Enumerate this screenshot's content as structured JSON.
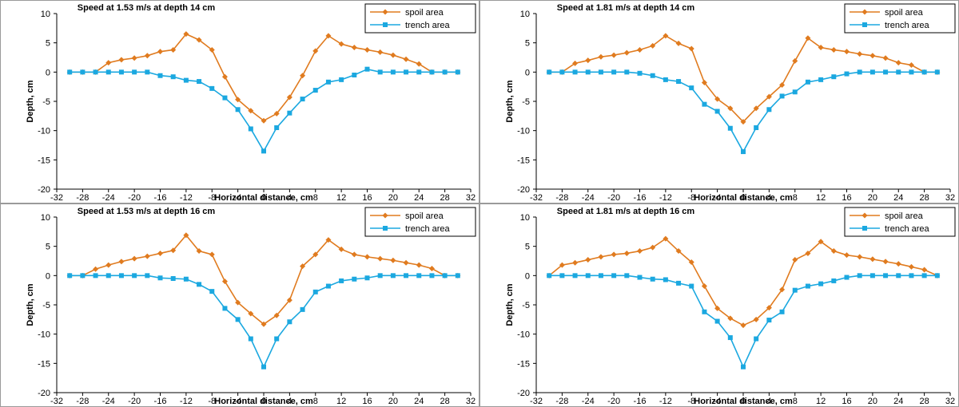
{
  "chart_data": [
    {
      "type": "line",
      "title": "Speed at 1.53 m/s at depth 14 cm",
      "xlabel": "Horizontal distance, cm",
      "ylabel": "Depth, cm",
      "xlim": [
        -32,
        32
      ],
      "ylim": [
        -20,
        10
      ],
      "xticks": [
        "-32",
        "-28",
        "-24",
        "-20",
        "-16",
        "-12",
        "-8",
        "-4",
        "0",
        "4",
        "8",
        "12",
        "16",
        "20",
        "24",
        "28",
        "32"
      ],
      "yticks": [
        "10",
        "5",
        "0",
        "-5",
        "-10",
        "-15",
        "-20"
      ],
      "legend": "top-right",
      "x": [
        -30,
        -28,
        -26,
        -24,
        -22,
        -20,
        -18,
        -16,
        -14,
        -12,
        -10,
        -8,
        -6,
        -4,
        -2,
        0,
        2,
        4,
        6,
        8,
        10,
        12,
        14,
        16,
        18,
        20,
        22,
        24,
        26,
        28,
        30
      ],
      "series": [
        {
          "name": "spoil area",
          "color": "#e07b1f",
          "marker": "diamond",
          "values": [
            0,
            0,
            0,
            1.6,
            2.1,
            2.4,
            2.8,
            3.5,
            3.8,
            6.5,
            5.5,
            3.8,
            -0.8,
            -4.7,
            -6.6,
            -8.3,
            -7.1,
            -4.3,
            -0.6,
            3.6,
            6.2,
            4.8,
            4.2,
            3.8,
            3.4,
            2.9,
            2.2,
            1.4,
            0,
            0,
            0
          ]
        },
        {
          "name": "trench area",
          "color": "#1ba8e0",
          "marker": "square",
          "values": [
            0,
            0,
            0,
            0,
            0,
            0,
            0,
            -0.6,
            -0.8,
            -1.4,
            -1.6,
            -2.8,
            -4.4,
            -6.4,
            -9.7,
            -13.5,
            -9.5,
            -7.0,
            -4.6,
            -3.1,
            -1.7,
            -1.3,
            -0.5,
            0.5,
            0,
            0,
            0,
            0,
            0,
            0,
            0
          ]
        }
      ]
    },
    {
      "type": "line",
      "title": "Speed at 1.81 m/s at depth 14 cm",
      "xlabel": "Horizontal distance, cm",
      "ylabel": "Depth, cm",
      "xlim": [
        -32,
        32
      ],
      "ylim": [
        -20,
        10
      ],
      "xticks": [
        "-32",
        "-28",
        "-24",
        "-20",
        "-16",
        "-12",
        "-8",
        "-4",
        "0",
        "4",
        "8",
        "12",
        "16",
        "20",
        "24",
        "28",
        "32"
      ],
      "yticks": [
        "10",
        "5",
        "0",
        "-5",
        "-10",
        "-15",
        "-20"
      ],
      "legend": "top-right",
      "x": [
        -30,
        -28,
        -26,
        -24,
        -22,
        -20,
        -18,
        -16,
        -14,
        -12,
        -10,
        -8,
        -6,
        -4,
        -2,
        0,
        2,
        4,
        6,
        8,
        10,
        12,
        14,
        16,
        18,
        20,
        22,
        24,
        26,
        28,
        30
      ],
      "series": [
        {
          "name": "spoil area",
          "color": "#e07b1f",
          "marker": "diamond",
          "values": [
            0,
            0,
            1.5,
            2.0,
            2.6,
            2.9,
            3.3,
            3.8,
            4.5,
            6.2,
            4.9,
            4.0,
            -1.8,
            -4.6,
            -6.2,
            -8.5,
            -6.2,
            -4.2,
            -2.2,
            1.9,
            5.8,
            4.2,
            3.8,
            3.5,
            3.1,
            2.8,
            2.4,
            1.6,
            1.2,
            0,
            0
          ]
        },
        {
          "name": "trench area",
          "color": "#1ba8e0",
          "marker": "square",
          "values": [
            0,
            0,
            0,
            0,
            0,
            0,
            0,
            -0.2,
            -0.6,
            -1.3,
            -1.6,
            -2.7,
            -5.5,
            -6.7,
            -9.6,
            -13.6,
            -9.5,
            -6.4,
            -4.1,
            -3.4,
            -1.7,
            -1.3,
            -0.8,
            -0.3,
            0,
            0,
            0,
            0,
            0,
            0,
            0
          ]
        }
      ]
    },
    {
      "type": "line",
      "title": "Speed at 1.53 m/s at depth 16 cm",
      "xlabel": "Horizontal distance, cm",
      "ylabel": "Depth, cm",
      "xlim": [
        -32,
        32
      ],
      "ylim": [
        -20,
        10
      ],
      "xticks": [
        "-32",
        "-28",
        "-24",
        "-20",
        "-16",
        "-12",
        "-8",
        "-4",
        "0",
        "4",
        "8",
        "12",
        "16",
        "20",
        "24",
        "28",
        "32"
      ],
      "yticks": [
        "10",
        "5",
        "0",
        "-5",
        "-10",
        "-15",
        "-20"
      ],
      "legend": "top-right",
      "x": [
        -30,
        -28,
        -26,
        -24,
        -22,
        -20,
        -18,
        -16,
        -14,
        -12,
        -10,
        -8,
        -6,
        -4,
        -2,
        0,
        2,
        4,
        6,
        8,
        10,
        12,
        14,
        16,
        18,
        20,
        22,
        24,
        26,
        28,
        30
      ],
      "series": [
        {
          "name": "spoil area",
          "color": "#e07b1f",
          "marker": "diamond",
          "values": [
            0,
            0,
            1.1,
            1.8,
            2.4,
            2.9,
            3.3,
            3.8,
            4.3,
            6.9,
            4.2,
            3.6,
            -1.0,
            -4.6,
            -6.5,
            -8.3,
            -6.8,
            -4.2,
            1.6,
            3.6,
            6.1,
            4.5,
            3.6,
            3.2,
            2.9,
            2.6,
            2.2,
            1.8,
            1.2,
            0,
            0
          ]
        },
        {
          "name": "trench area",
          "color": "#1ba8e0",
          "marker": "square",
          "values": [
            0,
            0,
            0,
            0,
            0,
            0,
            0,
            -0.4,
            -0.5,
            -0.6,
            -1.5,
            -2.7,
            -5.6,
            -7.5,
            -10.8,
            -15.6,
            -10.8,
            -7.9,
            -5.8,
            -2.8,
            -1.8,
            -0.9,
            -0.6,
            -0.4,
            0,
            0,
            0,
            0,
            0,
            0,
            0
          ]
        }
      ]
    },
    {
      "type": "line",
      "title": "Speed at 1.81 m/s at depth 16 cm",
      "xlabel": "Horizontal distance, cm",
      "ylabel": "Depth, cm",
      "xlim": [
        -32,
        32
      ],
      "ylim": [
        -20,
        10
      ],
      "xticks": [
        "-32",
        "-28",
        "-24",
        "-20",
        "-16",
        "-12",
        "-8",
        "-4",
        "0",
        "4",
        "8",
        "12",
        "16",
        "20",
        "24",
        "28",
        "32"
      ],
      "yticks": [
        "10",
        "5",
        "0",
        "-5",
        "-10",
        "-15",
        "-20"
      ],
      "legend": "top-right",
      "x": [
        -30,
        -28,
        -26,
        -24,
        -22,
        -20,
        -18,
        -16,
        -14,
        -12,
        -10,
        -8,
        -6,
        -4,
        -2,
        0,
        2,
        4,
        6,
        8,
        10,
        12,
        14,
        16,
        18,
        20,
        22,
        24,
        26,
        28,
        30
      ],
      "series": [
        {
          "name": "spoil area",
          "color": "#e07b1f",
          "marker": "diamond",
          "values": [
            0,
            1.8,
            2.2,
            2.7,
            3.2,
            3.6,
            3.8,
            4.2,
            4.8,
            6.3,
            4.2,
            2.3,
            -1.8,
            -5.6,
            -7.3,
            -8.5,
            -7.5,
            -5.5,
            -2.4,
            2.7,
            3.8,
            5.8,
            4.2,
            3.5,
            3.2,
            2.8,
            2.4,
            2.0,
            1.5,
            1.0,
            0
          ]
        },
        {
          "name": "trench area",
          "color": "#1ba8e0",
          "marker": "square",
          "values": [
            0,
            0,
            0,
            0,
            0,
            0,
            0,
            -0.3,
            -0.6,
            -0.7,
            -1.3,
            -1.8,
            -6.2,
            -7.8,
            -10.6,
            -15.6,
            -10.8,
            -7.6,
            -6.2,
            -2.5,
            -1.8,
            -1.4,
            -0.9,
            -0.3,
            0,
            0,
            0,
            0,
            0,
            0,
            0
          ]
        }
      ]
    }
  ]
}
